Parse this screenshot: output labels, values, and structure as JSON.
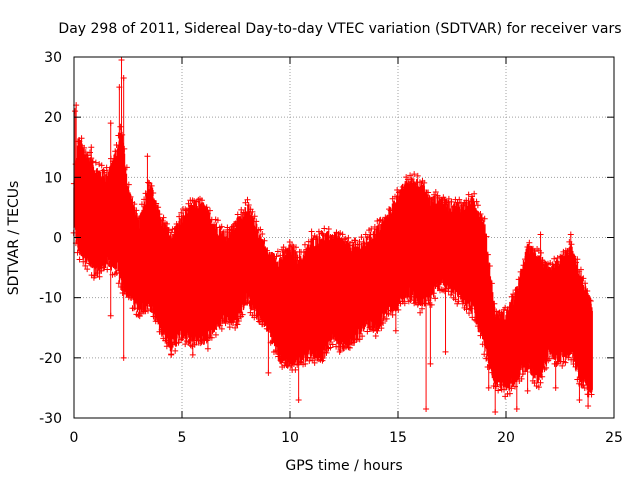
{
  "chart_data": {
    "type": "scatter",
    "title": "Day 298 of 2011, Sidereal Day-to-day VTEC variation (SDTVAR) for receiver vars",
    "xlabel": "GPS time / hours",
    "ylabel": "SDTVAR / TECUs",
    "xlim": [
      0,
      25
    ],
    "ylim": [
      -30,
      30
    ],
    "xticks": [
      0,
      5,
      10,
      15,
      20,
      25
    ],
    "yticks": [
      -30,
      -20,
      -10,
      0,
      10,
      20,
      30
    ],
    "grid": true,
    "marker": "+",
    "series": [
      {
        "name": "SDTVAR",
        "color": "#ff0000",
        "envelope": {
          "x": [
            0,
            0.2,
            0.5,
            1.0,
            1.5,
            2.0,
            2.2,
            2.5,
            3.0,
            3.5,
            4.0,
            4.5,
            5.0,
            5.5,
            6.0,
            6.5,
            7.0,
            7.5,
            8.0,
            8.5,
            9.0,
            9.5,
            10.0,
            10.5,
            11.0,
            11.5,
            12.0,
            12.5,
            13.0,
            13.5,
            14.0,
            14.5,
            15.0,
            15.5,
            16.0,
            16.5,
            17.0,
            17.5,
            18.0,
            18.5,
            19.0,
            19.5,
            20.0,
            20.5,
            21.0,
            21.5,
            22.0,
            22.5,
            23.0,
            23.5,
            24.0
          ],
          "upper": [
            8,
            16,
            14,
            11,
            10,
            14,
            18,
            8,
            2,
            9,
            3,
            0,
            3,
            5,
            5,
            2,
            0,
            2,
            5,
            1,
            -3,
            -4,
            -2,
            -4,
            -1,
            0,
            0,
            -1,
            -2,
            -1,
            1,
            3,
            7,
            9,
            9,
            6,
            6,
            5,
            5,
            6,
            2,
            -13,
            -13,
            -9,
            -2,
            -3,
            -6,
            -4,
            -2,
            -7,
            -12
          ],
          "lower": [
            2,
            -2,
            -3,
            -6,
            -4,
            -5,
            -8,
            -9,
            -12,
            -11,
            -15,
            -18,
            -16,
            -17,
            -17,
            -15,
            -13,
            -14,
            -10,
            -13,
            -15,
            -20,
            -21,
            -20,
            -19,
            -20,
            -16,
            -18,
            -17,
            -14,
            -15,
            -12,
            -11,
            -9,
            -11,
            -10,
            -7,
            -9,
            -10,
            -12,
            -18,
            -24,
            -25,
            -23,
            -21,
            -24,
            -19,
            -20,
            -19,
            -24,
            -25
          ]
        },
        "outliers": [
          {
            "x": 0.05,
            "y": 21
          },
          {
            "x": 0.1,
            "y": 22
          },
          {
            "x": 0.35,
            "y": 16.5
          },
          {
            "x": 0.8,
            "y": 15
          },
          {
            "x": 1.7,
            "y": 19
          },
          {
            "x": 2.1,
            "y": 25
          },
          {
            "x": 2.2,
            "y": 29.5
          },
          {
            "x": 2.3,
            "y": 26.5
          },
          {
            "x": 1.7,
            "y": -13
          },
          {
            "x": 2.3,
            "y": -20
          },
          {
            "x": 3.4,
            "y": 13.5
          },
          {
            "x": 4.5,
            "y": -19.5
          },
          {
            "x": 5.5,
            "y": -19.5
          },
          {
            "x": 6.2,
            "y": -18.5
          },
          {
            "x": 9.0,
            "y": -22.5
          },
          {
            "x": 10.4,
            "y": -27
          },
          {
            "x": 11.0,
            "y": 1
          },
          {
            "x": 12.1,
            "y": -2
          },
          {
            "x": 12.3,
            "y": -19
          },
          {
            "x": 14.9,
            "y": -15.5
          },
          {
            "x": 16.3,
            "y": -28.5
          },
          {
            "x": 16.5,
            "y": -21
          },
          {
            "x": 17.2,
            "y": -19
          },
          {
            "x": 19.5,
            "y": -29
          },
          {
            "x": 19.2,
            "y": -25
          },
          {
            "x": 20.5,
            "y": -28.5
          },
          {
            "x": 21.0,
            "y": -25.5
          },
          {
            "x": 21.6,
            "y": 0.5
          },
          {
            "x": 22.3,
            "y": -25
          },
          {
            "x": 23.0,
            "y": 0.5
          },
          {
            "x": 23.4,
            "y": -27
          },
          {
            "x": 23.8,
            "y": -28
          }
        ]
      }
    ]
  }
}
